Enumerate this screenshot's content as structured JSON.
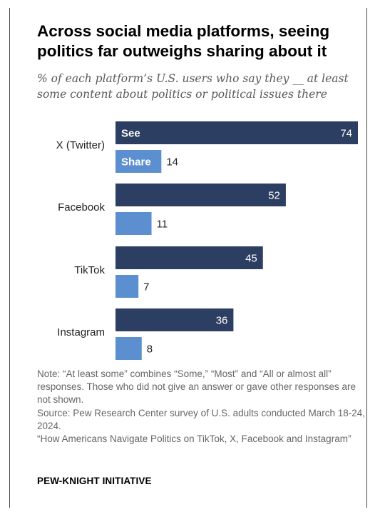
{
  "title": "Across social media platforms, seeing politics far outweighs sharing about it",
  "subtitle": "% of each platform’s U.S. users who say they __ at least some content about politics or political issues there",
  "notes": [
    "Note: “At least some” combines “Some,” “Most” and “All or almost all” responses. Those who did not give an answer or gave other responses are not shown.",
    "Source: Pew Research Center survey of U.S. adults conducted March 18-24, 2024.",
    "“How Americans Navigate Politics on TikTok, X, Facebook and Instagram”"
  ],
  "brand": "PEW-KNIGHT INITIATIVE",
  "colors": {
    "see": "#2d3e63",
    "share": "#5b8fd0"
  },
  "chart_data": {
    "type": "bar",
    "orientation": "horizontal",
    "categories": [
      "X (Twitter)",
      "Facebook",
      "TikTok",
      "Instagram"
    ],
    "series": [
      {
        "name": "See",
        "values": [
          74,
          52,
          45,
          36
        ]
      },
      {
        "name": "Share",
        "values": [
          14,
          11,
          7,
          8
        ]
      }
    ],
    "xlim": [
      0,
      74
    ],
    "grid": false,
    "legend": "series labels inside first pair of bars"
  }
}
